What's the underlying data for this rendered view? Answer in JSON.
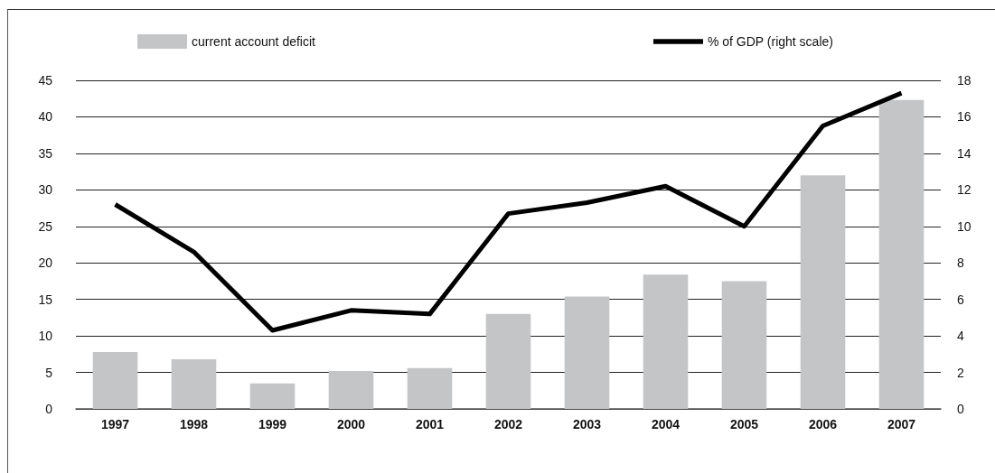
{
  "chart_data": {
    "type": "bar",
    "categories": [
      "1997",
      "1998",
      "1999",
      "2000",
      "2001",
      "2002",
      "2003",
      "2004",
      "2005",
      "2006",
      "2007"
    ],
    "series": [
      {
        "name": "current account deficit",
        "color": "#c4c5c7",
        "values": [
          7.8,
          6.8,
          3.5,
          5.2,
          5.6,
          13.0,
          15.4,
          18.4,
          17.5,
          32.0,
          42.3
        ]
      },
      {
        "name": "% of GDP (right scale)",
        "type": "line",
        "axis": "y2",
        "color": "#000000",
        "values": [
          11.2,
          8.6,
          4.3,
          5.4,
          5.2,
          10.7,
          11.3,
          12.2,
          10.0,
          15.5,
          17.3
        ]
      }
    ],
    "ylim": [
      0,
      45
    ],
    "yticks": [
      0,
      5,
      10,
      15,
      20,
      25,
      30,
      35,
      40,
      45
    ],
    "y2lim": [
      0,
      18
    ],
    "y2ticks": [
      0,
      2,
      4,
      6,
      8,
      10,
      12,
      14,
      16,
      18
    ],
    "grid": "y",
    "legend": "top",
    "marker": "none",
    "line_style": "solid"
  }
}
